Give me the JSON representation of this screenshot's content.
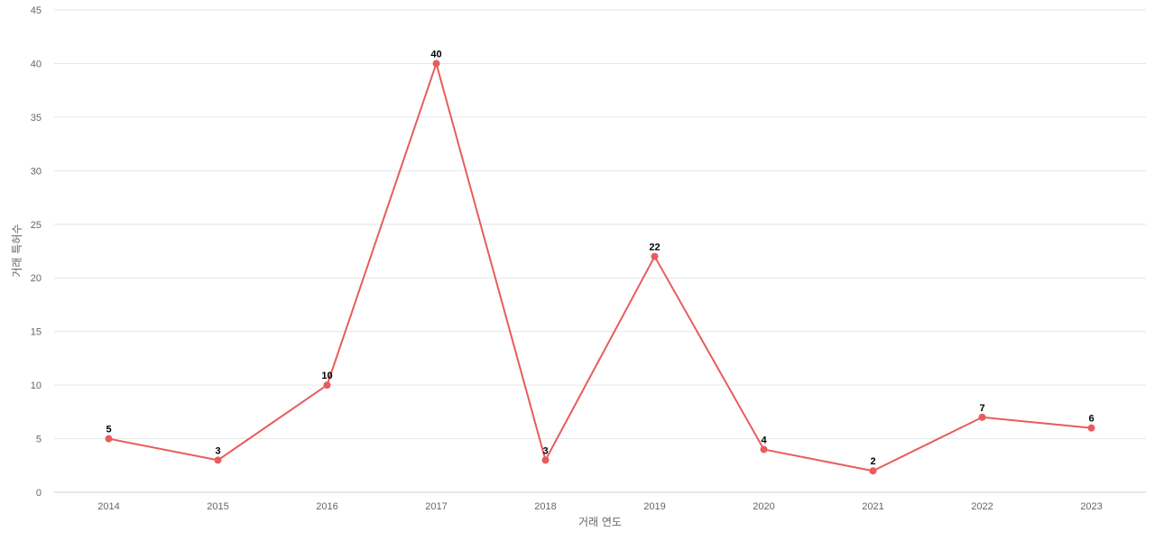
{
  "chart_data": {
    "type": "line",
    "title": "",
    "xlabel": "거래 연도",
    "ylabel": "거래 특허수",
    "categories": [
      "2014",
      "2015",
      "2016",
      "2017",
      "2018",
      "2019",
      "2020",
      "2021",
      "2022",
      "2023"
    ],
    "series": [
      {
        "values": [
          5,
          3,
          10,
          40,
          3,
          22,
          4,
          2,
          7,
          6
        ],
        "color": "#e85c5c"
      }
    ],
    "ylim": [
      0,
      45
    ],
    "yticks": [
      0,
      5,
      10,
      15,
      20,
      25,
      30,
      35,
      40,
      45
    ],
    "grid": true,
    "data_labels": true,
    "legend": "none"
  }
}
